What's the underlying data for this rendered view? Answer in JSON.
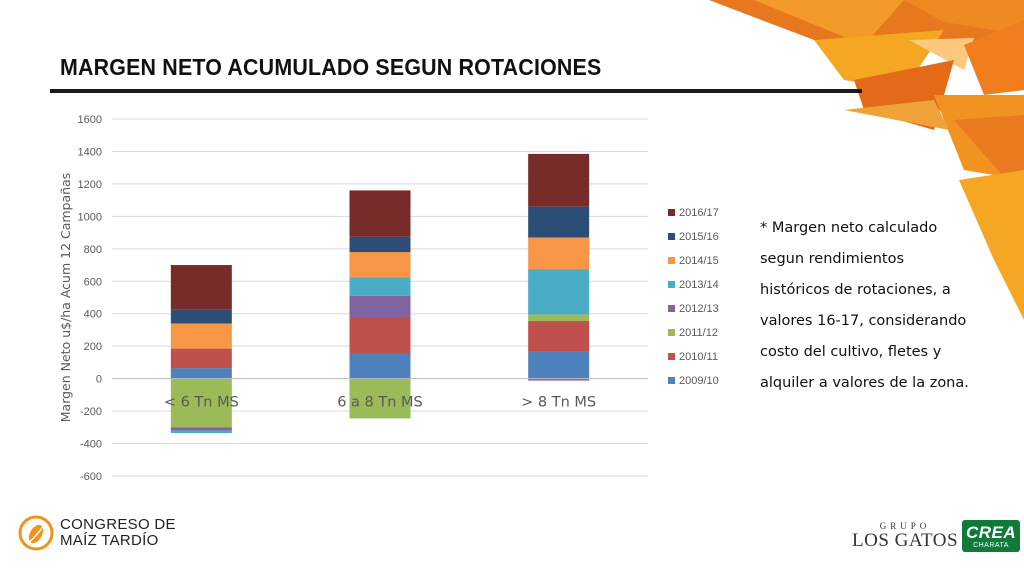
{
  "slide": {
    "title": "MARGEN NETO ACUMULADO SEGUN ROTACIONES",
    "note": "* Margen neto calculado segun rendimientos históricos de rotaciones, a valores 16-17, considerando costo del cultivo, fletes y alquiler a valores de la zona."
  },
  "logos": {
    "left_line1": "CONGRESO DE",
    "left_line2": "MAÍZ TARDÍO",
    "right_top": "GRUPO",
    "right_main": "LOS GATOS",
    "crea": "CREA",
    "crea_sub": "CHARATA"
  },
  "chart_data": {
    "type": "bar",
    "stacked": true,
    "categories": [
      "< 6 Tn MS",
      "6 a 8 Tn MS",
      "> 8 Tn MS"
    ],
    "ylabel": "Margen Neto u$/ha Acum 12 Campañas",
    "ylim": [
      -600,
      1600
    ],
    "yticks": [
      1600,
      1400,
      1200,
      1000,
      800,
      600,
      400,
      200,
      0,
      -200,
      -400,
      -600
    ],
    "grid": true,
    "legend_position": "right",
    "series": [
      {
        "name": "2009/10",
        "color": "#4f81bd",
        "values": [
          65,
          155,
          170
        ]
      },
      {
        "name": "2010/11",
        "color": "#c0504d",
        "values": [
          120,
          225,
          185
        ]
      },
      {
        "name": "2011/12",
        "color": "#9bbb59",
        "values": [
          -300,
          -245,
          40
        ]
      },
      {
        "name": "2012/13",
        "color": "#8064a2",
        "values": [
          -20,
          130,
          -12
        ]
      },
      {
        "name": "2013/14",
        "color": "#4bacc6",
        "values": [
          -15,
          115,
          280
        ]
      },
      {
        "name": "2014/15",
        "color": "#f79646",
        "values": [
          155,
          155,
          195
        ]
      },
      {
        "name": "2015/16",
        "color": "#2c4d75",
        "values": [
          85,
          95,
          190
        ]
      },
      {
        "name": "2016/17",
        "color": "#772c2a",
        "values": [
          275,
          285,
          325
        ]
      }
    ]
  }
}
